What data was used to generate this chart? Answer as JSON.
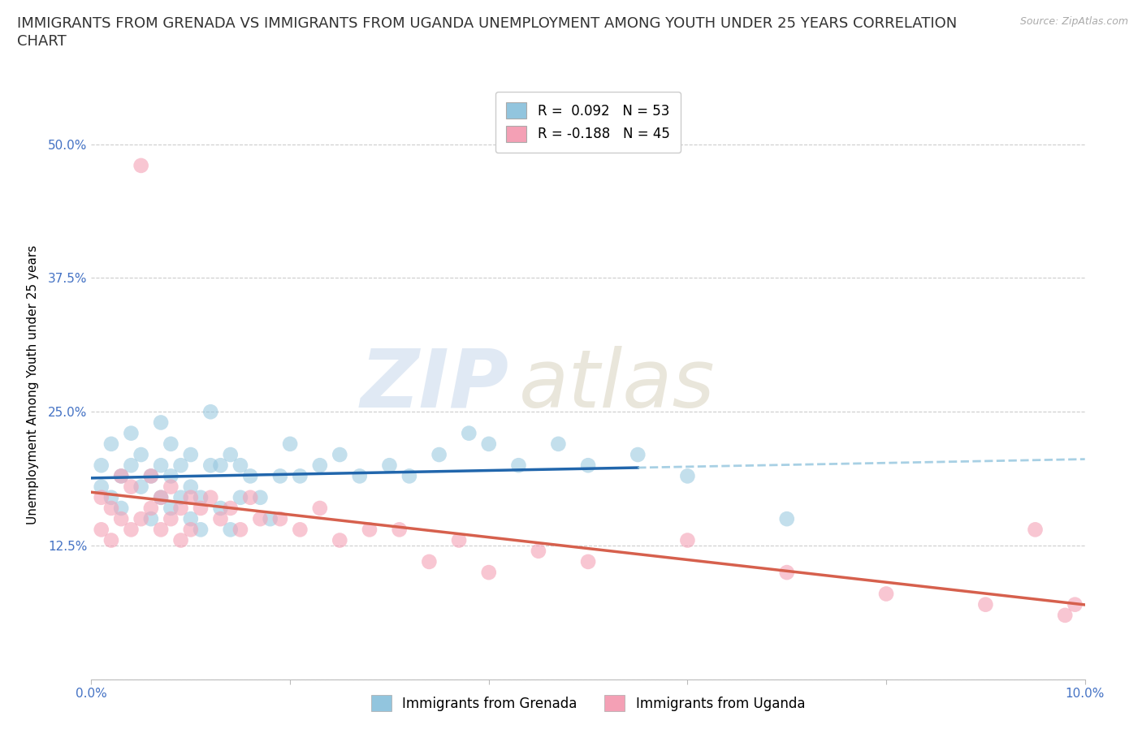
{
  "title_line1": "IMMIGRANTS FROM GRENADA VS IMMIGRANTS FROM UGANDA UNEMPLOYMENT AMONG YOUTH UNDER 25 YEARS CORRELATION",
  "title_line2": "CHART",
  "source_text": "Source: ZipAtlas.com",
  "ylabel": "Unemployment Among Youth under 25 years",
  "xlim": [
    0.0,
    0.1
  ],
  "ylim": [
    0.0,
    0.55
  ],
  "x_ticks": [
    0.0,
    0.02,
    0.04,
    0.06,
    0.08,
    0.1
  ],
  "x_tick_labels": [
    "0.0%",
    "",
    "",
    "",
    "",
    "10.0%"
  ],
  "y_ticks": [
    0.0,
    0.125,
    0.25,
    0.375,
    0.5
  ],
  "y_tick_labels": [
    "",
    "12.5%",
    "25.0%",
    "37.5%",
    "50.0%"
  ],
  "grenada_R": 0.092,
  "grenada_N": 53,
  "uganda_R": -0.188,
  "uganda_N": 45,
  "grenada_scatter_color": "#92c5de",
  "uganda_scatter_color": "#f4a0b5",
  "trend_grenada_solid_color": "#2166ac",
  "trend_grenada_dash_color": "#92c5de",
  "trend_uganda_color": "#d6604d",
  "tick_label_color": "#4472c4",
  "background_color": "#ffffff",
  "grid_color": "#cccccc",
  "watermark_zip": "ZIP",
  "watermark_atlas": "atlas",
  "title_fontsize": 13,
  "axis_label_fontsize": 11,
  "tick_fontsize": 11,
  "legend_fontsize": 12,
  "grenada_x": [
    0.001,
    0.001,
    0.002,
    0.002,
    0.003,
    0.003,
    0.004,
    0.004,
    0.005,
    0.005,
    0.006,
    0.006,
    0.007,
    0.007,
    0.007,
    0.008,
    0.008,
    0.008,
    0.009,
    0.009,
    0.01,
    0.01,
    0.01,
    0.011,
    0.011,
    0.012,
    0.012,
    0.013,
    0.013,
    0.014,
    0.014,
    0.015,
    0.015,
    0.016,
    0.017,
    0.018,
    0.019,
    0.02,
    0.021,
    0.023,
    0.025,
    0.027,
    0.03,
    0.032,
    0.035,
    0.038,
    0.04,
    0.043,
    0.047,
    0.05,
    0.055,
    0.06,
    0.07
  ],
  "grenada_y": [
    0.18,
    0.2,
    0.17,
    0.22,
    0.16,
    0.19,
    0.2,
    0.23,
    0.18,
    0.21,
    0.15,
    0.19,
    0.17,
    0.2,
    0.24,
    0.16,
    0.19,
    0.22,
    0.17,
    0.2,
    0.15,
    0.18,
    0.21,
    0.14,
    0.17,
    0.2,
    0.25,
    0.16,
    0.2,
    0.14,
    0.21,
    0.17,
    0.2,
    0.19,
    0.17,
    0.15,
    0.19,
    0.22,
    0.19,
    0.2,
    0.21,
    0.19,
    0.2,
    0.19,
    0.21,
    0.23,
    0.22,
    0.2,
    0.22,
    0.2,
    0.21,
    0.19,
    0.15
  ],
  "uganda_x": [
    0.001,
    0.001,
    0.002,
    0.002,
    0.003,
    0.003,
    0.004,
    0.004,
    0.005,
    0.005,
    0.006,
    0.006,
    0.007,
    0.007,
    0.008,
    0.008,
    0.009,
    0.009,
    0.01,
    0.01,
    0.011,
    0.012,
    0.013,
    0.014,
    0.015,
    0.016,
    0.017,
    0.019,
    0.021,
    0.023,
    0.025,
    0.028,
    0.031,
    0.034,
    0.037,
    0.04,
    0.045,
    0.05,
    0.06,
    0.07,
    0.08,
    0.09,
    0.095,
    0.098,
    0.099
  ],
  "uganda_y": [
    0.14,
    0.17,
    0.13,
    0.16,
    0.15,
    0.19,
    0.14,
    0.18,
    0.15,
    0.48,
    0.16,
    0.19,
    0.14,
    0.17,
    0.15,
    0.18,
    0.13,
    0.16,
    0.14,
    0.17,
    0.16,
    0.17,
    0.15,
    0.16,
    0.14,
    0.17,
    0.15,
    0.15,
    0.14,
    0.16,
    0.13,
    0.14,
    0.14,
    0.11,
    0.13,
    0.1,
    0.12,
    0.11,
    0.13,
    0.1,
    0.08,
    0.07,
    0.14,
    0.06,
    0.07
  ]
}
